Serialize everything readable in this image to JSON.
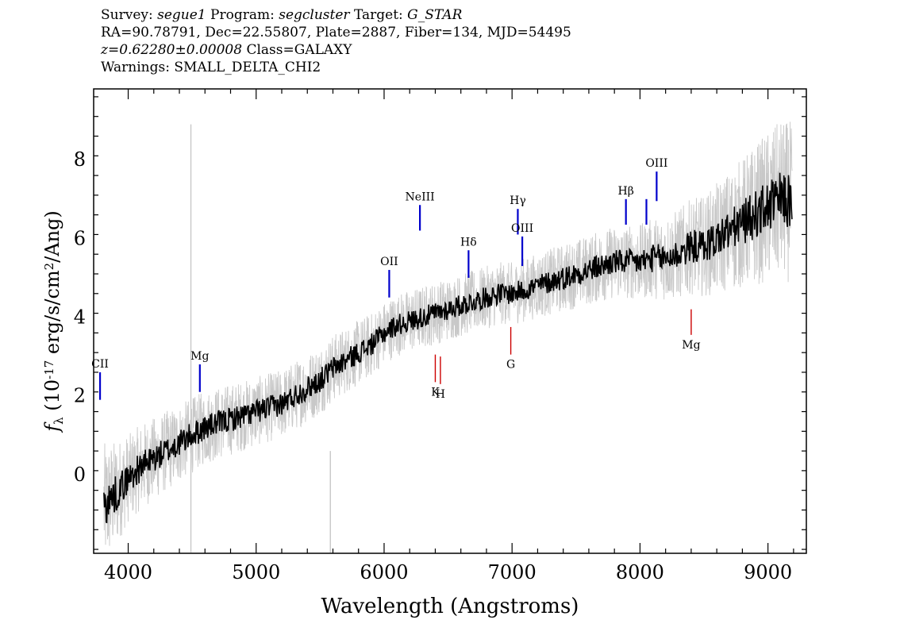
{
  "header": {
    "survey_label": "Survey:",
    "survey": "segue1",
    "program_label": "Program:",
    "program": "segcluster",
    "target_label": "Target:",
    "target": "G_STAR",
    "line2": "RA=90.78791, Dec=22.55807, Plate=2887, Fiber=134, MJD=54495",
    "redshift": "z=0.62280±0.00008",
    "class": "Class=GALAXY",
    "warnings": "Warnings: SMALL_DELTA_CHI2"
  },
  "chart_data": {
    "type": "line",
    "xlabel": "Wavelength (Angstroms)",
    "ylabel": "f_λ (10^-17 erg/s/cm^2/Ang)",
    "xlim": [
      3730,
      9300
    ],
    "ylim": [
      -2.0,
      9.8
    ],
    "xticks": [
      4000,
      5000,
      6000,
      7000,
      8000,
      9000
    ],
    "yticks": [
      0,
      2,
      4,
      6,
      8
    ],
    "grid": false,
    "series": [
      {
        "role": "smoothed-flux",
        "color": "#000000",
        "x": [
          3810,
          3900,
          4000,
          4100,
          4200,
          4300,
          4400,
          4500,
          4600,
          4700,
          4800,
          4900,
          5000,
          5100,
          5200,
          5300,
          5400,
          5500,
          5600,
          5700,
          5800,
          5900,
          6000,
          6100,
          6200,
          6300,
          6400,
          6500,
          6600,
          6700,
          6800,
          6900,
          7000,
          7100,
          7200,
          7300,
          7400,
          7500,
          7600,
          7700,
          7800,
          7900,
          8000,
          8100,
          8200,
          8300,
          8400,
          8500,
          8600,
          8700,
          8800,
          8900,
          9000,
          9100,
          9190
        ],
        "y": [
          -0.8,
          -0.5,
          -0.1,
          0.2,
          0.4,
          0.6,
          0.8,
          1.0,
          1.2,
          1.3,
          1.4,
          1.5,
          1.6,
          1.7,
          1.8,
          2.0,
          2.2,
          2.4,
          2.7,
          2.9,
          3.1,
          3.3,
          3.6,
          3.8,
          3.9,
          4.0,
          4.1,
          4.2,
          4.3,
          4.4,
          4.5,
          4.6,
          4.6,
          4.7,
          4.8,
          4.9,
          5.0,
          5.1,
          5.2,
          5.3,
          5.4,
          5.4,
          5.4,
          5.5,
          5.5,
          5.6,
          5.8,
          5.8,
          6.0,
          6.2,
          6.4,
          6.6,
          6.8,
          7.0,
          6.9
        ]
      },
      {
        "role": "noise-envelope",
        "color": "#c8c8c8",
        "x": [
          3810,
          4000,
          4500,
          5000,
          5500,
          6000,
          6500,
          7000,
          7500,
          8000,
          8500,
          9000,
          9190
        ],
        "y_err": [
          1.0,
          0.7,
          0.6,
          0.55,
          0.55,
          0.5,
          0.5,
          0.5,
          0.55,
          0.6,
          0.8,
          1.2,
          1.3
        ]
      }
    ],
    "emission_lines": [
      {
        "label": "CII",
        "x": 3780,
        "y_bottom": 1.9,
        "y_top": 2.6
      },
      {
        "label": "Mg",
        "x": 4560,
        "y_bottom": 2.1,
        "y_top": 2.8
      },
      {
        "label": "OII",
        "x": 6040,
        "y_bottom": 4.5,
        "y_top": 5.2
      },
      {
        "label": "NeIII",
        "x": 6280,
        "y_bottom": 6.2,
        "y_top": 6.85
      },
      {
        "label": "Hδ",
        "x": 6660,
        "y_bottom": 5.0,
        "y_top": 5.7
      },
      {
        "label": "Hγ",
        "x": 7045,
        "y_bottom": 6.1,
        "y_top": 6.75
      },
      {
        "label": "OIII",
        "x": 7080,
        "y_bottom": 5.3,
        "y_top": 6.05
      },
      {
        "label": "Hβ",
        "x": 7890,
        "y_bottom": 6.35,
        "y_top": 7.0
      },
      {
        "label": "",
        "x": 8050,
        "y_bottom": 6.35,
        "y_top": 7.0
      },
      {
        "label": "OIII",
        "x": 8130,
        "y_bottom": 6.95,
        "y_top": 7.7
      }
    ],
    "absorption_lines": [
      {
        "label": "K",
        "x": 6400,
        "y_bottom": 2.35,
        "y_top": 3.05
      },
      {
        "label": "H",
        "x": 6440,
        "y_bottom": 2.3,
        "y_top": 3.0
      },
      {
        "label": "G",
        "x": 6990,
        "y_bottom": 3.05,
        "y_top": 3.75
      },
      {
        "label": "Mg",
        "x": 8400,
        "y_bottom": 3.55,
        "y_top": 4.2
      }
    ],
    "colors": {
      "emission": "#0000cc",
      "absorption": "#cc0000",
      "noise": "#c8c8c8",
      "flux": "#000000"
    }
  }
}
